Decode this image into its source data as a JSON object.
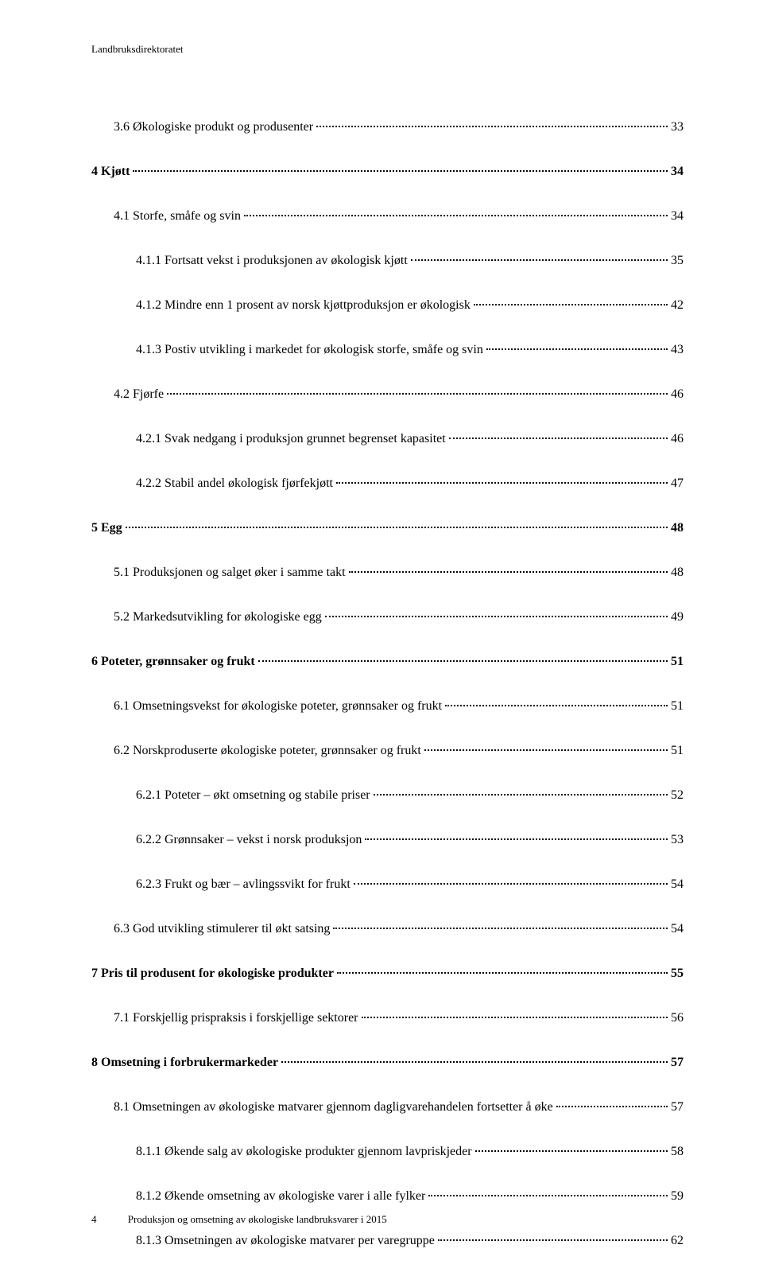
{
  "header": "Landbruksdirektoratet",
  "footer": {
    "pageNumber": "4",
    "text": "Produksjon og omsetning av økologiske landbruksvarer i 2015"
  },
  "toc": [
    {
      "level": 1,
      "label": "3.6 Økologiske produkt og produsenter",
      "page": "33",
      "bold": false,
      "gap": false
    },
    {
      "level": 0,
      "label": "4  Kjøtt",
      "page": "34",
      "bold": true,
      "gap": true
    },
    {
      "level": 1,
      "label": "4.1 Storfe, småfe og svin",
      "page": "34",
      "bold": false,
      "gap": true
    },
    {
      "level": 2,
      "label": "4.1.1 Fortsatt vekst i produksjonen av økologisk kjøtt",
      "page": "35",
      "bold": false,
      "gap": true
    },
    {
      "level": 2,
      "label": "4.1.2 Mindre enn 1 prosent av norsk kjøttproduksjon er økologisk",
      "page": "42",
      "bold": false,
      "gap": true
    },
    {
      "level": 2,
      "label": "4.1.3 Postiv utvikling i markedet for økologisk storfe, småfe og svin",
      "page": "43",
      "bold": false,
      "gap": true
    },
    {
      "level": 1,
      "label": "4.2 Fjørfe",
      "page": "46",
      "bold": false,
      "gap": true
    },
    {
      "level": 2,
      "label": "4.2.1 Svak nedgang i produksjon grunnet begrenset kapasitet",
      "page": "46",
      "bold": false,
      "gap": true
    },
    {
      "level": 2,
      "label": "4.2.2 Stabil andel økologisk fjørfekjøtt",
      "page": "47",
      "bold": false,
      "gap": true
    },
    {
      "level": 0,
      "label": "5  Egg",
      "page": "48",
      "bold": true,
      "gap": true
    },
    {
      "level": 1,
      "label": "5.1 Produksjonen og salget øker i samme takt",
      "page": "48",
      "bold": false,
      "gap": true
    },
    {
      "level": 1,
      "label": "5.2 Markedsutvikling for økologiske egg",
      "page": "49",
      "bold": false,
      "gap": true
    },
    {
      "level": 0,
      "label": "6  Poteter, grønnsaker og frukt",
      "page": "51",
      "bold": true,
      "gap": true
    },
    {
      "level": 1,
      "label": "6.1 Omsetningsvekst for økologiske poteter, grønnsaker og frukt",
      "page": "51",
      "bold": false,
      "gap": true
    },
    {
      "level": 1,
      "label": "6.2 Norskproduserte økologiske poteter, grønnsaker og frukt",
      "page": "51",
      "bold": false,
      "gap": true
    },
    {
      "level": 2,
      "label": "6.2.1 Poteter – økt omsetning og stabile priser",
      "page": "52",
      "bold": false,
      "gap": true
    },
    {
      "level": 2,
      "label": "6.2.2 Grønnsaker – vekst i norsk produksjon",
      "page": "53",
      "bold": false,
      "gap": true
    },
    {
      "level": 2,
      "label": "6.2.3 Frukt og bær – avlingssvikt for frukt",
      "page": "54",
      "bold": false,
      "gap": true
    },
    {
      "level": 1,
      "label": "6.3 God utvikling stimulerer til økt satsing",
      "page": "54",
      "bold": false,
      "gap": true
    },
    {
      "level": 0,
      "label": "7  Pris til produsent for økologiske produkter",
      "page": "55",
      "bold": true,
      "gap": true
    },
    {
      "level": 1,
      "label": "7.1 Forskjellig prispraksis i forskjellige sektorer",
      "page": "56",
      "bold": false,
      "gap": true
    },
    {
      "level": 0,
      "label": "8  Omsetning i forbrukermarkeder",
      "page": "57",
      "bold": true,
      "gap": true
    },
    {
      "level": 1,
      "label": "8.1 Omsetningen av økologiske matvarer gjennom dagligvarehandelen fortsetter å øke",
      "page": "57",
      "bold": false,
      "gap": true
    },
    {
      "level": 2,
      "label": "8.1.1 Økende salg av økologiske produkter gjennom lavpriskjeder",
      "page": "58",
      "bold": false,
      "gap": true
    },
    {
      "level": 2,
      "label": "8.1.2 Økende omsetning av økologiske varer i alle fylker",
      "page": "59",
      "bold": false,
      "gap": true
    },
    {
      "level": 2,
      "label": "8.1.3 Omsetningen av økologiske matvarer per varegruppe",
      "page": "62",
      "bold": false,
      "gap": true
    }
  ]
}
